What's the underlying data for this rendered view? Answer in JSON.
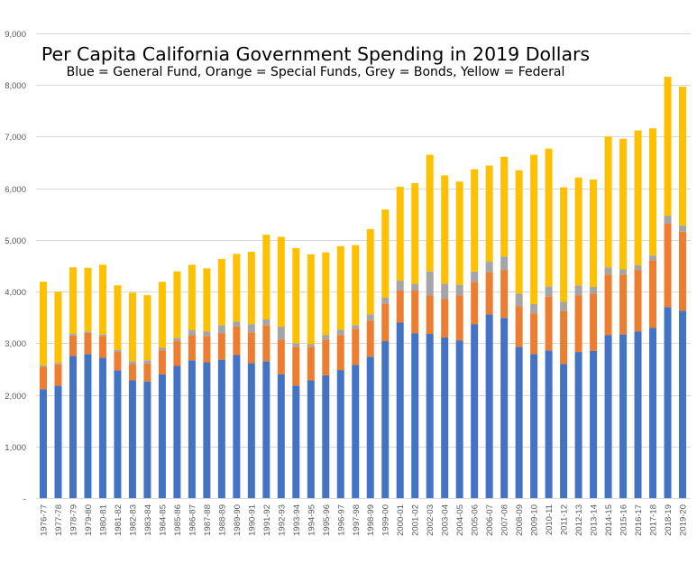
{
  "chart_data": {
    "type": "bar",
    "stacked": true,
    "title": "Per Capita California Government Spending in 2019 Dollars",
    "subtitle": "Blue = General Fund, Orange = Special Funds, Grey = Bonds, Yellow = Federal",
    "xlabel": "",
    "ylabel": "",
    "ylim": [
      0,
      9000
    ],
    "yticks": [
      0,
      1000,
      2000,
      3000,
      4000,
      5000,
      6000,
      7000,
      8000,
      9000
    ],
    "ytick_labels": [
      "-",
      "1,000",
      "2,000",
      "3,000",
      "4,000",
      "5,000",
      "6,000",
      "7,000",
      "8,000",
      "9,000"
    ],
    "grid": true,
    "legend": "none (described in subtitle)",
    "categories": [
      "1976-77",
      "1977-78",
      "1978-79",
      "1979-80",
      "1980-81",
      "1981-82",
      "1982-83",
      "1983-84",
      "1984-85",
      "1985-86",
      "1986-87",
      "1987-88",
      "1988-89",
      "1989-90",
      "1990-91",
      "1991-92",
      "1992-93",
      "1993-94",
      "1994-95",
      "1995-96",
      "1996-97",
      "1997-98",
      "1998-99",
      "1999-00",
      "2000-01",
      "2001-02",
      "2002-03",
      "2003-04",
      "2004-05",
      "2005-06",
      "2006-07",
      "2007-08",
      "2008-09",
      "2009-10",
      "2010-11",
      "2011-12",
      "2012-13",
      "2013-14",
      "2014-15",
      "2015-16",
      "2016-17",
      "2017-18",
      "2018-19",
      "2019-20"
    ],
    "series": [
      {
        "name": "General Fund",
        "color": "#4472C4",
        "values": [
          2110,
          2175,
          2755,
          2790,
          2720,
          2475,
          2280,
          2260,
          2400,
          2560,
          2670,
          2630,
          2680,
          2770,
          2615,
          2650,
          2400,
          2180,
          2280,
          2380,
          2480,
          2580,
          2740,
          3040,
          3400,
          3190,
          3180,
          3110,
          3050,
          3370,
          3560,
          3490,
          2930,
          2790,
          2860,
          2600,
          2830,
          2850,
          3160,
          3170,
          3230,
          3300,
          3700,
          3630
        ]
      },
      {
        "name": "Special Funds",
        "color": "#ED7D31",
        "values": [
          430,
          415,
          395,
          410,
          420,
          355,
          320,
          350,
          460,
          480,
          490,
          510,
          510,
          550,
          595,
          700,
          670,
          750,
          650,
          690,
          680,
          700,
          700,
          730,
          620,
          830,
          750,
          750,
          880,
          820,
          810,
          930,
          790,
          790,
          1050,
          1030,
          1100,
          1110,
          1170,
          1160,
          1190,
          1310,
          1620,
          1530
        ]
      },
      {
        "name": "Bonds",
        "color": "#A5A5A5",
        "values": [
          30,
          30,
          30,
          30,
          30,
          40,
          50,
          60,
          50,
          60,
          90,
          90,
          160,
          100,
          160,
          110,
          250,
          70,
          50,
          90,
          100,
          70,
          120,
          110,
          190,
          130,
          460,
          290,
          200,
          200,
          210,
          260,
          240,
          180,
          190,
          170,
          190,
          130,
          140,
          100,
          90,
          90,
          150,
          120
        ]
      },
      {
        "name": "Federal",
        "color": "#FFC000",
        "values": [
          1620,
          1380,
          1290,
          1230,
          1350,
          1250,
          1330,
          1260,
          1280,
          1290,
          1270,
          1220,
          1280,
          1310,
          1400,
          1640,
          1740,
          1840,
          1740,
          1600,
          1620,
          1550,
          1650,
          1710,
          1820,
          1950,
          2260,
          2100,
          2000,
          1980,
          1860,
          1930,
          2390,
          2890,
          2670,
          2220,
          2090,
          2080,
          2530,
          2530,
          2610,
          2460,
          2690,
          2690
        ]
      }
    ]
  }
}
